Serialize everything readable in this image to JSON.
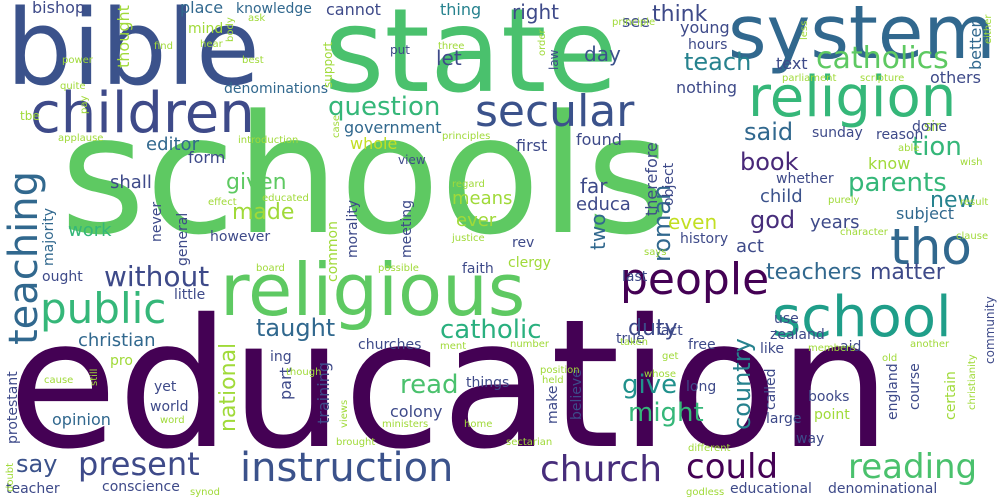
{
  "words": [
    {
      "text": "education",
      "color": "#440154"
    },
    {
      "text": "schools",
      "color": "#5ec962"
    },
    {
      "text": "state",
      "color": "#4ac16d"
    },
    {
      "text": "bible",
      "color": "#3b528b"
    },
    {
      "text": "system",
      "color": "#31688e"
    },
    {
      "text": "religious",
      "color": "#5ec962"
    },
    {
      "text": "children",
      "color": "#3e4a89"
    },
    {
      "text": "religion",
      "color": "#35b779"
    },
    {
      "text": "school",
      "color": "#1f9e89"
    },
    {
      "text": "secular",
      "color": "#3b528b"
    },
    {
      "text": "instruction",
      "color": "#3b528b"
    },
    {
      "text": "public",
      "color": "#35b779"
    },
    {
      "text": "teaching",
      "color": "#31688e"
    },
    {
      "text": "people",
      "color": "#440154"
    },
    {
      "text": "church",
      "color": "#472d7b"
    },
    {
      "text": "tho",
      "color": "#31688e"
    },
    {
      "text": "catholics",
      "color": "#5ec962"
    },
    {
      "text": "reading",
      "color": "#4ac16d"
    },
    {
      "text": "question",
      "color": "#35b779"
    },
    {
      "text": "present",
      "color": "#3e4a89"
    },
    {
      "text": "could",
      "color": "#440154"
    },
    {
      "text": "without",
      "color": "#3e4a89"
    },
    {
      "text": "catholic",
      "color": "#2ab07f"
    },
    {
      "text": "teach",
      "color": "#26828e"
    },
    {
      "text": "parents",
      "color": "#35b779"
    },
    {
      "text": "teachers",
      "color": "#31688e"
    },
    {
      "text": "matter",
      "color": "#3e4a89"
    },
    {
      "text": "tion",
      "color": "#35b779"
    },
    {
      "text": "think",
      "color": "#3e4a89"
    },
    {
      "text": "taught",
      "color": "#31688e"
    },
    {
      "text": "book",
      "color": "#482878"
    },
    {
      "text": "government",
      "color": "#31688e"
    },
    {
      "text": "might",
      "color": "#35b779"
    },
    {
      "text": "give",
      "color": "#21918c"
    },
    {
      "text": "given",
      "color": "#5ec962"
    },
    {
      "text": "made",
      "color": "#a0da39"
    },
    {
      "text": "roman",
      "color": "#31688e"
    },
    {
      "text": "country",
      "color": "#26828e"
    },
    {
      "text": "duty",
      "color": "#3e4a89"
    },
    {
      "text": "read",
      "color": "#4ac16d"
    },
    {
      "text": "god",
      "color": "#472d7b"
    },
    {
      "text": "say",
      "color": "#3b528b"
    },
    {
      "text": "christian",
      "color": "#31688e"
    },
    {
      "text": "national",
      "color": "#a0da39"
    },
    {
      "text": "said",
      "color": "#31688e"
    },
    {
      "text": "new",
      "color": "#26828e"
    },
    {
      "text": "subject",
      "color": "#31688e"
    },
    {
      "text": "right",
      "color": "#3e4a89"
    },
    {
      "text": "day",
      "color": "#3b528b"
    },
    {
      "text": "let",
      "color": "#3e4a89"
    },
    {
      "text": "whole",
      "color": "#c2df23"
    },
    {
      "text": "editor",
      "color": "#31688e"
    },
    {
      "text": "shall",
      "color": "#3e4a89"
    },
    {
      "text": "form",
      "color": "#3e4a89"
    },
    {
      "text": "work",
      "color": "#35b779"
    },
    {
      "text": "means",
      "color": "#a0da39"
    },
    {
      "text": "ever",
      "color": "#a0da39"
    },
    {
      "text": "even",
      "color": "#c2df23"
    },
    {
      "text": "years",
      "color": "#3e4a89"
    },
    {
      "text": "child",
      "color": "#3b528b"
    },
    {
      "text": "act",
      "color": "#3e4a89"
    },
    {
      "text": "first",
      "color": "#3e4a89"
    },
    {
      "text": "found",
      "color": "#3e4a89"
    },
    {
      "text": "two",
      "color": "#31688e"
    },
    {
      "text": "far",
      "color": "#3e4a89"
    },
    {
      "text": "educa",
      "color": "#3e4a89"
    },
    {
      "text": "thing",
      "color": "#26828e"
    },
    {
      "text": "see",
      "color": "#3e4a89"
    },
    {
      "text": "place",
      "color": "#31688e"
    },
    {
      "text": "knowledge",
      "color": "#31688e"
    },
    {
      "text": "cannot",
      "color": "#3e4a89"
    },
    {
      "text": "bishop",
      "color": "#3e4a89"
    },
    {
      "text": "thought",
      "color": "#a0da39"
    },
    {
      "text": "mind",
      "color": "#a0da39"
    },
    {
      "text": "denominations",
      "color": "#31688e"
    },
    {
      "text": "young",
      "color": "#3e4a89"
    },
    {
      "text": "hours",
      "color": "#3e4a89"
    },
    {
      "text": "nothing",
      "color": "#3e4a89"
    },
    {
      "text": "text",
      "color": "#3e4a89"
    },
    {
      "text": "others",
      "color": "#3e4a89"
    },
    {
      "text": "better",
      "color": "#31688e"
    },
    {
      "text": "sunday",
      "color": "#3e4a89"
    },
    {
      "text": "sir",
      "color": "#a0da39"
    },
    {
      "text": "done",
      "color": "#3e4a89"
    },
    {
      "text": "reason",
      "color": "#3e4a89"
    },
    {
      "text": "know",
      "color": "#a0da39"
    },
    {
      "text": "whether",
      "color": "#3e4a89"
    },
    {
      "text": "therefore",
      "color": "#3e4a89"
    },
    {
      "text": "object",
      "color": "#3e4a89"
    },
    {
      "text": "history",
      "color": "#3e4a89"
    },
    {
      "text": "general",
      "color": "#3e4a89"
    },
    {
      "text": "never",
      "color": "#3e4a89"
    },
    {
      "text": "however",
      "color": "#3e4a89"
    },
    {
      "text": "majority",
      "color": "#31688e"
    },
    {
      "text": "ought",
      "color": "#3e4a89"
    },
    {
      "text": "little",
      "color": "#3e4a89"
    },
    {
      "text": "common",
      "color": "#a0da39"
    },
    {
      "text": "training",
      "color": "#3e4a89"
    },
    {
      "text": "morality",
      "color": "#3e4a89"
    },
    {
      "text": "meeting",
      "color": "#3e4a89"
    },
    {
      "text": "rev",
      "color": "#3e4a89"
    },
    {
      "text": "clergy",
      "color": "#a0da39"
    },
    {
      "text": "faith",
      "color": "#3e4a89"
    },
    {
      "text": "true",
      "color": "#3e4a89"
    },
    {
      "text": "fact",
      "color": "#3e4a89"
    },
    {
      "text": "last",
      "color": "#3e4a89"
    },
    {
      "text": "use",
      "color": "#3e4a89"
    },
    {
      "text": "zealand",
      "color": "#3e4a89"
    },
    {
      "text": "ing",
      "color": "#3e4a89"
    },
    {
      "text": "part",
      "color": "#3e4a89"
    },
    {
      "text": "churches",
      "color": "#3e4a89"
    },
    {
      "text": "free",
      "color": "#3e4a89"
    },
    {
      "text": "aid",
      "color": "#3e4a89"
    },
    {
      "text": "like",
      "color": "#3e4a89"
    },
    {
      "text": "pro",
      "color": "#a0da39"
    },
    {
      "text": "yet",
      "color": "#3e4a89"
    },
    {
      "text": "world",
      "color": "#3e4a89"
    },
    {
      "text": "opinion",
      "color": "#31688e"
    },
    {
      "text": "colony",
      "color": "#3e4a89"
    },
    {
      "text": "things",
      "color": "#3e4a89"
    },
    {
      "text": "make",
      "color": "#3e4a89"
    },
    {
      "text": "believe",
      "color": "#3e4a89"
    },
    {
      "text": "long",
      "color": "#3e4a89"
    },
    {
      "text": "called",
      "color": "#3e4a89"
    },
    {
      "text": "large",
      "color": "#3e4a89"
    },
    {
      "text": "way",
      "color": "#3e4a89"
    },
    {
      "text": "books",
      "color": "#3e4a89"
    },
    {
      "text": "point",
      "color": "#a0da39"
    },
    {
      "text": "england",
      "color": "#3e4a89"
    },
    {
      "text": "course",
      "color": "#3e4a89"
    },
    {
      "text": "certain",
      "color": "#a0da39"
    },
    {
      "text": "conscience",
      "color": "#3e4a89"
    },
    {
      "text": "teacher",
      "color": "#3e4a89"
    },
    {
      "text": "educational",
      "color": "#3e4a89"
    },
    {
      "text": "denominational",
      "color": "#3e4a89"
    },
    {
      "text": "protestant",
      "color": "#3e4a89"
    },
    {
      "text": "community",
      "color": "#3e4a89"
    },
    {
      "text": "view",
      "color": "#3e4a89"
    },
    {
      "text": "put",
      "color": "#3e4a89"
    },
    {
      "text": "law",
      "color": "#3e4a89"
    },
    {
      "text": "support",
      "color": "#a0da39"
    },
    {
      "text": "ask",
      "color": "#a0da39"
    },
    {
      "text": "body",
      "color": "#a0da39"
    },
    {
      "text": "best",
      "color": "#a0da39"
    },
    {
      "text": "hear",
      "color": "#a0da39"
    },
    {
      "text": "find",
      "color": "#a0da39"
    },
    {
      "text": "power",
      "color": "#a0da39"
    },
    {
      "text": "quite",
      "color": "#a0da39"
    },
    {
      "text": "applause",
      "color": "#a0da39"
    },
    {
      "text": "pay",
      "color": "#a0da39"
    },
    {
      "text": "tbe",
      "color": "#a0da39"
    },
    {
      "text": "introduction",
      "color": "#a0da39"
    },
    {
      "text": "order",
      "color": "#a0da39"
    },
    {
      "text": "principle",
      "color": "#a0da39"
    },
    {
      "text": "three",
      "color": "#a0da39"
    },
    {
      "text": "less",
      "color": "#a0da39"
    },
    {
      "text": "either",
      "color": "#a0da39"
    },
    {
      "text": "parliament",
      "color": "#a0da39"
    },
    {
      "text": "scripture",
      "color": "#a0da39"
    },
    {
      "text": "case",
      "color": "#a0da39"
    },
    {
      "text": "principles",
      "color": "#a0da39"
    },
    {
      "text": "able",
      "color": "#a0da39"
    },
    {
      "text": "wish",
      "color": "#a0da39"
    },
    {
      "text": "regard",
      "color": "#a0da39"
    },
    {
      "text": "purely",
      "color": "#a0da39"
    },
    {
      "text": "result",
      "color": "#a0da39"
    },
    {
      "text": "effect",
      "color": "#a0da39"
    },
    {
      "text": "educated",
      "color": "#a0da39"
    },
    {
      "text": "justice",
      "color": "#a0da39"
    },
    {
      "text": "character",
      "color": "#a0da39"
    },
    {
      "text": "clause",
      "color": "#a0da39"
    },
    {
      "text": "board",
      "color": "#a0da39"
    },
    {
      "text": "possible",
      "color": "#a0da39"
    },
    {
      "text": "says",
      "color": "#a0da39"
    },
    {
      "text": "whose",
      "color": "#a0da39"
    },
    {
      "text": "ment",
      "color": "#a0da39"
    },
    {
      "text": "number",
      "color": "#a0da39"
    },
    {
      "text": "members",
      "color": "#a0da39"
    },
    {
      "text": "another",
      "color": "#a0da39"
    },
    {
      "text": "christianity",
      "color": "#a0da39"
    },
    {
      "text": "get",
      "color": "#a0da39"
    },
    {
      "text": "taken",
      "color": "#a0da39"
    },
    {
      "text": "old",
      "color": "#a0da39"
    },
    {
      "text": "cause",
      "color": "#a0da39"
    },
    {
      "text": "still",
      "color": "#a0da39"
    },
    {
      "text": "though",
      "color": "#a0da39"
    },
    {
      "text": "position",
      "color": "#a0da39"
    },
    {
      "text": "held",
      "color": "#a0da39"
    },
    {
      "text": "word",
      "color": "#a0da39"
    },
    {
      "text": "views",
      "color": "#a0da39"
    },
    {
      "text": "ministers",
      "color": "#a0da39"
    },
    {
      "text": "home",
      "color": "#a0da39"
    },
    {
      "text": "doubt",
      "color": "#a0da39"
    },
    {
      "text": "brought",
      "color": "#a0da39"
    },
    {
      "text": "sectarian",
      "color": "#a0da39"
    },
    {
      "text": "different",
      "color": "#a0da39"
    },
    {
      "text": "synod",
      "color": "#a0da39"
    },
    {
      "text": "godless",
      "color": "#a0da39"
    }
  ]
}
